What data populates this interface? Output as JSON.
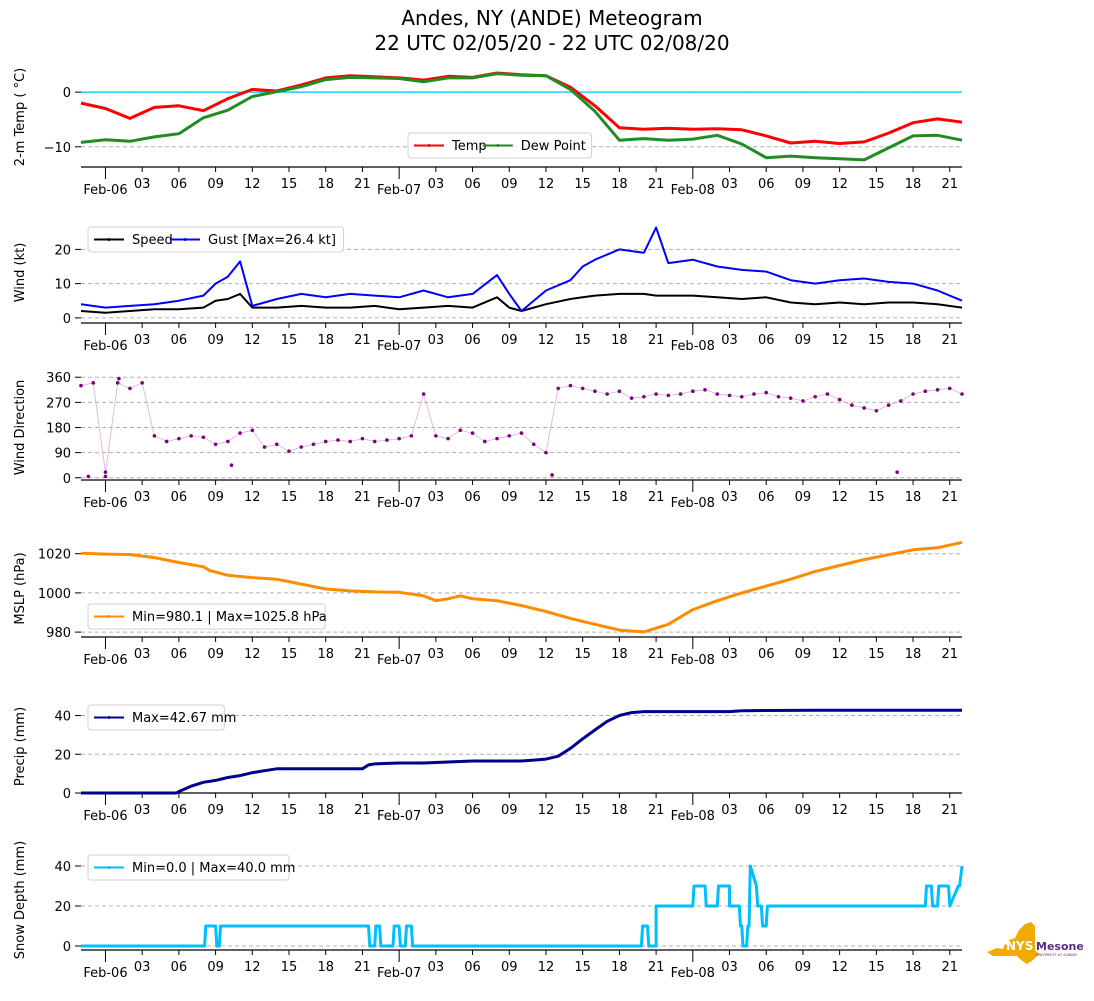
{
  "title": {
    "line1": "Andes, NY (ANDE) Meteogram",
    "line2": "22 UTC 02/05/20 - 22 UTC 02/08/20"
  },
  "logo": {
    "main": "NYS",
    "brand": "Mesonet",
    "sub": "UNIVERSITY AT ALBANY",
    "colors": {
      "state": "#f0ab00",
      "text": "#5b2c83"
    }
  },
  "chart_data": [
    {
      "type": "line",
      "id": "temp",
      "ylabel": "2-m Temp ($^\\circ$C)",
      "ylabel_display": "2-m Temp ( °C)",
      "ylim": [
        -13.7,
        4.6
      ],
      "yticks": [
        0,
        -10
      ],
      "ytick_labels": [
        "0",
        "−10"
      ],
      "grid": "dashed-horizontal",
      "ref_line": {
        "y": 0,
        "color": "#00bfff"
      },
      "legend": {
        "placement": "lower-center",
        "ncol": 2
      },
      "x_hours_from_start": [
        0,
        2,
        4,
        6,
        8,
        10,
        12,
        14,
        16,
        18,
        20,
        22,
        24,
        26,
        28,
        30,
        32,
        34,
        36,
        38,
        40,
        42,
        44,
        46,
        48,
        50,
        52,
        54,
        56,
        58,
        60,
        62,
        64,
        66,
        68,
        70,
        72
      ],
      "series": [
        {
          "name": "Temp",
          "color": "#ff0000",
          "values": [
            -2.0,
            -3.0,
            -4.8,
            -2.8,
            -2.5,
            -3.4,
            -1.2,
            0.5,
            0.2,
            1.3,
            2.6,
            3.0,
            2.8,
            2.6,
            2.2,
            2.9,
            2.7,
            3.5,
            3.2,
            3.0,
            0.9,
            -2.5,
            -6.5,
            -6.8,
            -6.6,
            -6.8,
            -6.7,
            -6.9,
            -8.0,
            -9.3,
            -9.0,
            -9.4,
            -9.1,
            -7.5,
            -5.6,
            -4.9,
            -5.5
          ]
        },
        {
          "name": "Dew Point",
          "color": "#228b22",
          "values": [
            -9.2,
            -8.7,
            -9.0,
            -8.2,
            -7.6,
            -4.7,
            -3.3,
            -0.8,
            0.1,
            1.0,
            2.3,
            2.7,
            2.6,
            2.5,
            1.9,
            2.6,
            2.6,
            3.4,
            3.1,
            3.0,
            0.5,
            -3.5,
            -8.8,
            -8.5,
            -8.8,
            -8.6,
            -7.9,
            -9.5,
            -12.0,
            -11.7,
            -12.0,
            -12.2,
            -12.4,
            -10.2,
            -8.0,
            -7.9,
            -8.8
          ]
        }
      ],
      "xticks_major": [
        "Feb-06",
        "Feb-07",
        "Feb-08"
      ],
      "xticks_minor": [
        "03",
        "06",
        "09",
        "12",
        "15",
        "18",
        "21"
      ]
    },
    {
      "type": "line",
      "id": "wind",
      "ylabel": "Wind (kt)",
      "ylim": [
        -1.5,
        28
      ],
      "yticks": [
        0,
        10,
        20
      ],
      "ytick_labels": [
        "0",
        "10",
        "20"
      ],
      "grid": "dashed-horizontal",
      "legend": {
        "placement": "upper-left",
        "ncol": 2
      },
      "x_hours_from_start": [
        0,
        2,
        4,
        6,
        8,
        10,
        11,
        12,
        13,
        14,
        16,
        18,
        20,
        22,
        24,
        26,
        28,
        30,
        32,
        34,
        35,
        36,
        38,
        40,
        41,
        42,
        44,
        46,
        47,
        48,
        50,
        52,
        54,
        56,
        58,
        60,
        62,
        64,
        66,
        68,
        70,
        72
      ],
      "series": [
        {
          "name": "Speed",
          "color": "#000000",
          "values": [
            2.0,
            1.5,
            2.0,
            2.5,
            2.5,
            3.0,
            5.0,
            5.5,
            7.0,
            3.0,
            3.0,
            3.5,
            3.0,
            3.0,
            3.5,
            2.5,
            3.0,
            3.5,
            3.0,
            6.0,
            3.0,
            2.0,
            4.0,
            5.5,
            6.0,
            6.5,
            7.0,
            7.0,
            6.5,
            6.5,
            6.5,
            6.0,
            5.5,
            6.0,
            4.5,
            4.0,
            4.5,
            4.0,
            4.5,
            4.5,
            4.0,
            3.0
          ]
        },
        {
          "name": "Gust [Max=26.4 kt]",
          "color": "#0000ff",
          "values": [
            4.0,
            3.0,
            3.5,
            4.0,
            5.0,
            6.5,
            10.0,
            12.0,
            16.5,
            3.5,
            5.5,
            7.0,
            6.0,
            7.0,
            6.5,
            6.0,
            8.0,
            6.0,
            7.0,
            12.5,
            7.0,
            2.0,
            8.0,
            11.0,
            15.0,
            17.0,
            20.0,
            19.0,
            26.4,
            16.0,
            17.0,
            15.0,
            14.0,
            13.5,
            11.0,
            10.0,
            11.0,
            11.5,
            10.5,
            10.0,
            8.0,
            5.0
          ]
        }
      ],
      "xticks_major": [
        "Feb-06",
        "Feb-07",
        "Feb-08"
      ],
      "xticks_minor": [
        "03",
        "06",
        "09",
        "12",
        "15",
        "18",
        "21"
      ]
    },
    {
      "type": "scatter",
      "id": "wind_direction",
      "ylabel": "Wind Direction",
      "ylim": [
        -8,
        368
      ],
      "yticks": [
        0,
        90,
        180,
        270,
        360
      ],
      "ytick_labels": [
        "0",
        "90",
        "180",
        "270",
        "360"
      ],
      "grid": "dashed-horizontal",
      "color": "#800080",
      "x_hours_from_start": [
        0,
        1,
        2,
        3,
        4,
        5,
        6,
        7,
        8,
        9,
        10,
        11,
        12,
        13,
        14,
        15,
        16,
        17,
        18,
        19,
        20,
        21,
        22,
        23,
        24,
        25,
        26,
        27,
        28,
        29,
        30,
        31,
        32,
        33,
        34,
        35,
        36,
        37,
        38,
        39,
        40,
        41,
        42,
        43,
        44,
        45,
        46,
        47,
        48,
        49,
        50,
        51,
        52,
        53,
        54,
        55,
        56,
        57,
        58,
        59,
        60,
        61,
        62,
        63,
        64,
        65,
        66,
        67,
        68,
        69,
        70,
        71,
        72
      ],
      "values": [
        330,
        340,
        20,
        340,
        320,
        340,
        150,
        130,
        140,
        150,
        145,
        120,
        130,
        160,
        170,
        110,
        120,
        95,
        110,
        120,
        130,
        135,
        130,
        140,
        130,
        135,
        140,
        150,
        300,
        150,
        140,
        170,
        160,
        130,
        140,
        150,
        160,
        120,
        90,
        320,
        330,
        320,
        310,
        300,
        310,
        285,
        290,
        300,
        295,
        300,
        310,
        315,
        300,
        295,
        290,
        300,
        305,
        290,
        285,
        275,
        290,
        300,
        280,
        260,
        250,
        240,
        260,
        275,
        300,
        310,
        315,
        320,
        300
      ],
      "outliers": [
        {
          "x": 66.7,
          "y": 20
        },
        {
          "x": 0.6,
          "y": 5
        },
        {
          "x": 2.0,
          "y": 5
        },
        {
          "x": 3.1,
          "y": 355
        },
        {
          "x": 12.3,
          "y": 45
        },
        {
          "x": 38.5,
          "y": 10
        }
      ],
      "xticks_major": [
        "Feb-06",
        "Feb-07",
        "Feb-08"
      ],
      "xticks_minor": [
        "03",
        "06",
        "09",
        "12",
        "15",
        "18",
        "21"
      ]
    },
    {
      "type": "line",
      "id": "mslp",
      "ylabel": "MSLP (hPa)",
      "ylim": [
        977.5,
        1027
      ],
      "yticks": [
        980,
        1000,
        1020
      ],
      "ytick_labels": [
        "980",
        "1000",
        "1020"
      ],
      "grid": "dashed-horizontal",
      "legend": {
        "placement": "lower-left"
      },
      "series": [
        {
          "name": "Min=980.1 | Max=1025.8 hPa",
          "color": "#ff8c00",
          "x_hours_from_start": [
            0,
            2,
            4,
            6,
            8,
            10,
            10.5,
            12,
            14,
            16,
            18,
            20,
            22,
            24,
            26,
            28,
            29,
            30,
            31,
            32,
            34,
            36,
            38,
            40,
            42,
            44,
            46,
            48,
            50,
            52,
            54,
            56,
            58,
            60,
            62,
            64,
            66,
            68,
            70,
            72
          ],
          "values": [
            1020.2,
            1019.8,
            1019.6,
            1018.0,
            1015.5,
            1013.3,
            1011.5,
            1009.0,
            1007.8,
            1007.0,
            1004.5,
            1002.0,
            1001.0,
            1000.5,
            1000.3,
            998.5,
            996.0,
            997.0,
            998.5,
            997.0,
            996.0,
            993.5,
            990.5,
            987.0,
            984.0,
            981.0,
            980.1,
            984.0,
            991.5,
            996.0,
            1000.0,
            1003.5,
            1007.0,
            1011.0,
            1014.0,
            1017.0,
            1019.5,
            1022.0,
            1023.0,
            1025.8
          ]
        }
      ],
      "xticks_major": [
        "Feb-06",
        "Feb-07",
        "Feb-08"
      ],
      "xticks_minor": [
        "03",
        "06",
        "09",
        "12",
        "15",
        "18",
        "21"
      ]
    },
    {
      "type": "line",
      "id": "precip",
      "ylabel": "Precip (mm)",
      "ylim": [
        0,
        48
      ],
      "yticks": [
        0,
        20,
        40
      ],
      "ytick_labels": [
        "0",
        "20",
        "40"
      ],
      "grid": "dashed-horizontal",
      "legend": {
        "placement": "upper-left"
      },
      "series": [
        {
          "name": "Max=42.67 mm",
          "color": "#00008b",
          "x_hours_from_start": [
            0,
            7.8,
            8,
            9,
            10,
            11,
            12,
            13,
            14,
            15,
            16,
            17,
            18,
            19,
            20,
            22,
            23,
            23.5,
            24,
            26,
            28,
            30,
            32,
            34,
            36,
            37,
            38,
            39,
            40,
            41,
            42,
            43,
            44,
            45,
            46,
            47,
            48,
            50,
            53,
            54,
            56,
            60,
            64,
            68,
            72
          ],
          "values": [
            0,
            0,
            0.8,
            3.5,
            5.5,
            6.5,
            8.0,
            9.0,
            10.5,
            11.5,
            12.5,
            12.5,
            12.5,
            12.5,
            12.5,
            12.5,
            12.5,
            14.5,
            15.0,
            15.5,
            15.5,
            16.0,
            16.5,
            16.5,
            16.5,
            17.0,
            17.5,
            19.0,
            23.0,
            28.0,
            32.5,
            37.0,
            40.0,
            41.5,
            42.0,
            42.0,
            42.0,
            42.0,
            42.0,
            42.5,
            42.6,
            42.67,
            42.67,
            42.67,
            42.67
          ]
        }
      ],
      "xticks_major": [
        "Feb-06",
        "Feb-07",
        "Feb-08"
      ],
      "xticks_minor": [
        "03",
        "06",
        "09",
        "12",
        "15",
        "18",
        "21"
      ]
    },
    {
      "type": "line",
      "id": "snow_depth",
      "ylabel": "Snow Depth (mm)",
      "ylim": [
        -2,
        48
      ],
      "yticks": [
        0,
        20,
        40
      ],
      "ytick_labels": [
        "0",
        "20",
        "40"
      ],
      "grid": "dashed-horizontal",
      "legend": {
        "placement": "upper-left"
      },
      "series": [
        {
          "name": "Min=0.0 | Max=40.0 mm",
          "color": "#00bfff",
          "x_hours_from_start": [
            0,
            10.1,
            10.2,
            11,
            11.1,
            11.3,
            11.4,
            23.5,
            23.6,
            24,
            24.1,
            24.4,
            24.5,
            25.5,
            25.6,
            26,
            26.1,
            26.5,
            26.6,
            27,
            27.1,
            27.9,
            28,
            45.8,
            45.9,
            46.3,
            46.4,
            47,
            47,
            50,
            50.1,
            51,
            51.1,
            52,
            52.1,
            53,
            53,
            53.8,
            53.9,
            54,
            54.1,
            54.4,
            54.5,
            54.6,
            54.7,
            55.2,
            55.3,
            55.6,
            55.7,
            56,
            56.1,
            69,
            69.1,
            69.5,
            69.6,
            70,
            70.1,
            70.9,
            71,
            71.7,
            71.8,
            72
          ],
          "values": [
            0,
            0,
            10,
            10,
            0,
            0,
            10,
            10,
            0,
            0,
            10,
            10,
            0,
            0,
            10,
            10,
            0,
            0,
            10,
            10,
            0,
            0,
            0,
            0,
            10,
            10,
            0,
            0,
            20,
            20,
            30,
            30,
            20,
            20,
            30,
            30,
            20,
            20,
            10,
            10,
            0,
            0,
            10,
            10,
            40,
            30,
            20,
            20,
            10,
            10,
            20,
            20,
            30,
            30,
            20,
            20,
            30,
            30,
            20,
            30,
            30,
            40
          ]
        }
      ],
      "xticks_major": [
        "Feb-06",
        "Feb-07",
        "Feb-08"
      ],
      "xticks_minor": [
        "03",
        "06",
        "09",
        "12",
        "15",
        "18",
        "21"
      ]
    }
  ]
}
